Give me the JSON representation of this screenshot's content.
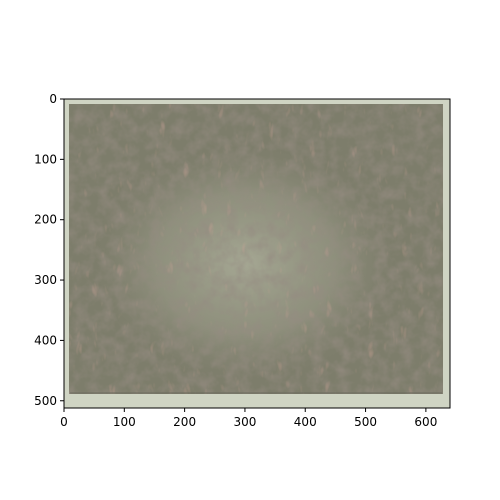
{
  "image_axes": {
    "x_ticks": [
      0,
      100,
      200,
      300,
      400,
      500,
      600
    ],
    "y_ticks": [
      0,
      100,
      200,
      300,
      400,
      500
    ],
    "x_range": [
      0,
      640
    ],
    "y_range": [
      512,
      0
    ],
    "y_inverted": true
  },
  "picture": {
    "description_colors": {
      "background": "#8a8a78",
      "mat": "#cfd4c3",
      "dark_mark": "#4b3f36",
      "reddish_mark": "#8a5a4a",
      "light_patch": "#a4a692"
    }
  }
}
